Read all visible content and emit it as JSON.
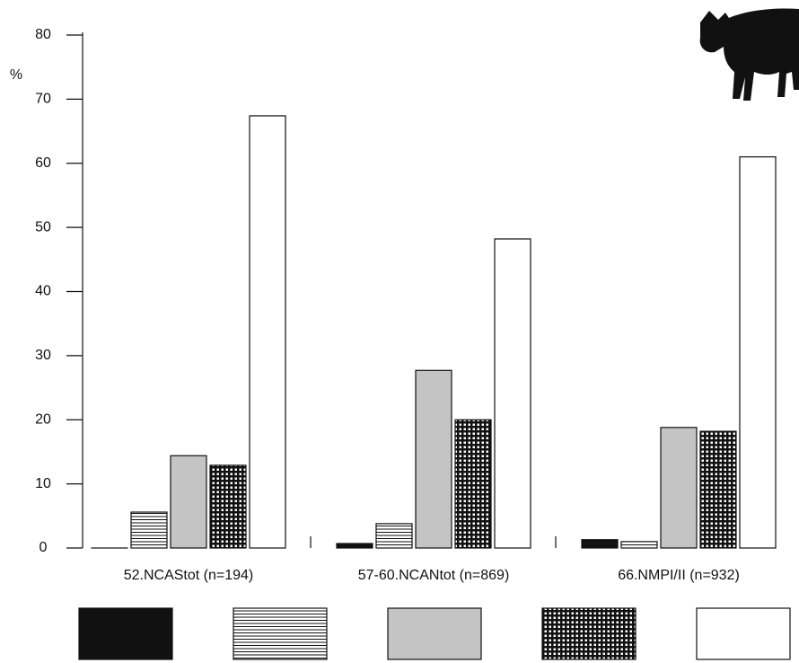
{
  "chart_data": {
    "type": "bar",
    "y_label": "%",
    "categories": [
      "52.NCAStot (n=194)",
      "57-60.NCANtot (n=869)",
      "66.NMPI/II (n=932)"
    ],
    "series": [
      {
        "color": "#111111",
        "values": [
          0,
          0.7,
          1.3
        ]
      },
      {
        "color": "#ffffff",
        "pattern": "horizontal-lines",
        "values": [
          5.6,
          3.8,
          1.0
        ]
      },
      {
        "color": "#c4c4c4",
        "values": [
          14.4,
          27.7,
          18.8
        ]
      },
      {
        "color": "#ffffff",
        "pattern": "checker",
        "values": [
          12.9,
          20.0,
          18.2
        ]
      },
      {
        "color": "#ffffff",
        "values": [
          67.4,
          48.2,
          61.0
        ]
      }
    ],
    "ylim": [
      0,
      80
    ],
    "yticks": [
      0,
      10,
      20,
      30,
      40,
      50,
      60,
      70,
      80
    ],
    "grid": false
  }
}
